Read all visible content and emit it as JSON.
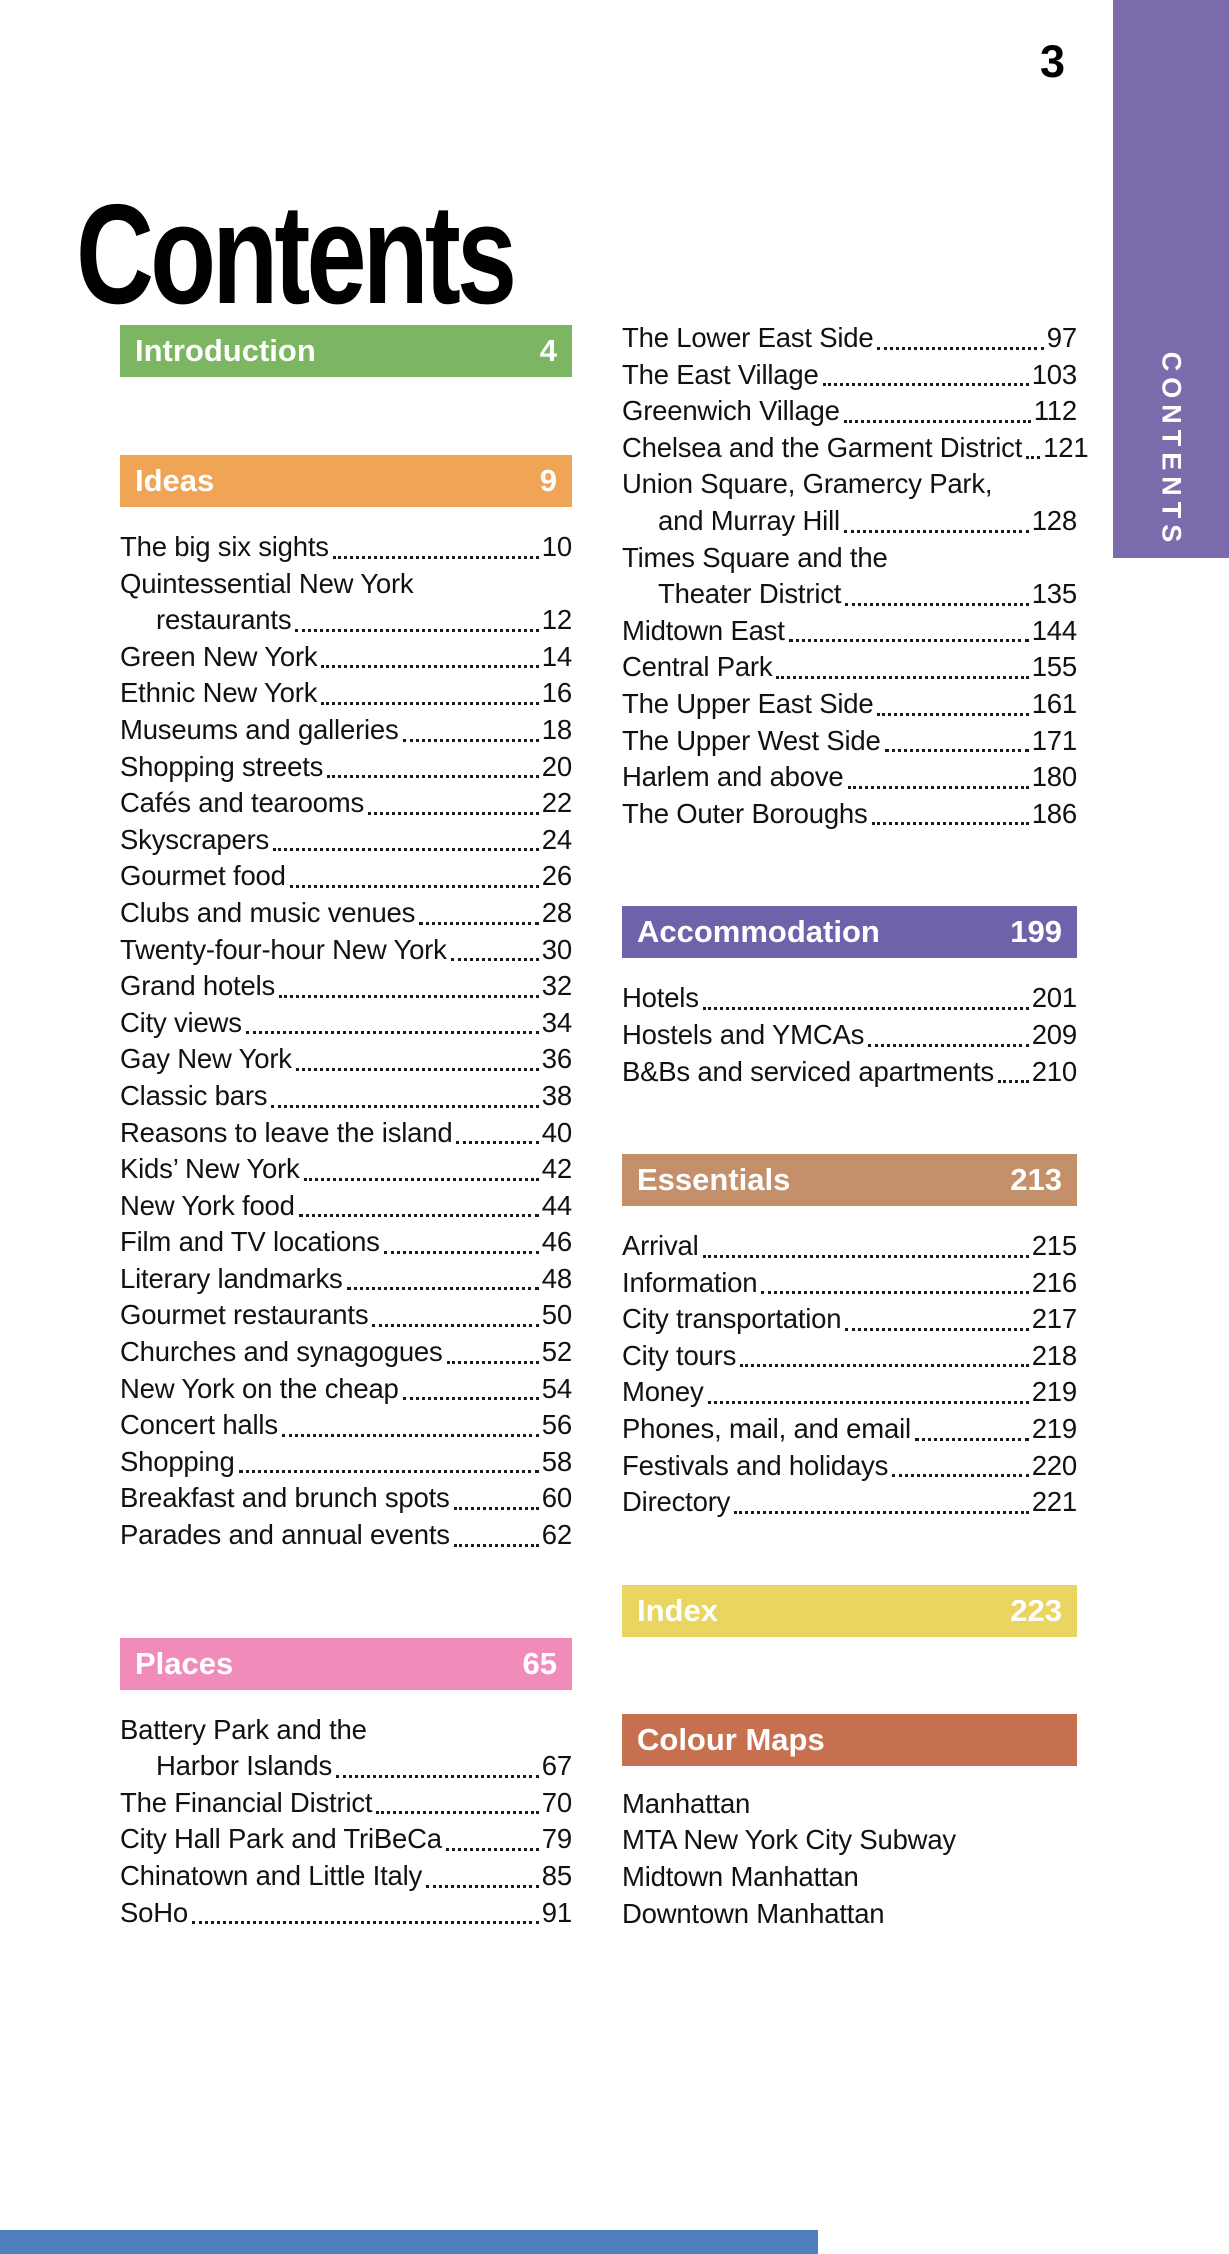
{
  "page_number": "3",
  "title": "Contents",
  "side_tab_label": "CONTENTS",
  "colors": {
    "side_tab": "#7C6CAE",
    "introduction": "#7DB662",
    "ideas": "#F0A455",
    "places": "#F18CBA",
    "accommodation": "#7061AB",
    "essentials": "#C3906B",
    "index": "#E9D55F",
    "colour_maps": "#C7704F",
    "footer_bar": "#4D7EBE"
  },
  "sections": {
    "introduction": {
      "label": "Introduction",
      "page": "4"
    },
    "ideas": {
      "label": "Ideas",
      "page": "9",
      "items": [
        {
          "label": "The big six sights",
          "page": "10"
        },
        {
          "pre": "Quintessential New York",
          "label": "restaurants",
          "page": "12"
        },
        {
          "label": "Green New York",
          "page": "14"
        },
        {
          "label": "Ethnic New York",
          "page": "16"
        },
        {
          "label": "Museums and galleries",
          "page": "18"
        },
        {
          "label": "Shopping streets",
          "page": "20"
        },
        {
          "label": "Cafés and tearooms",
          "page": "22"
        },
        {
          "label": "Skyscrapers",
          "page": "24"
        },
        {
          "label": "Gourmet food",
          "page": "26"
        },
        {
          "label": "Clubs and music venues",
          "page": "28"
        },
        {
          "label": "Twenty-four-hour New York",
          "page": "30"
        },
        {
          "label": "Grand hotels",
          "page": "32"
        },
        {
          "label": "City views",
          "page": "34"
        },
        {
          "label": "Gay New York",
          "page": "36"
        },
        {
          "label": "Classic bars",
          "page": "38"
        },
        {
          "label": "Reasons to leave the island",
          "page": "40"
        },
        {
          "label": "Kids’ New York",
          "page": "42"
        },
        {
          "label": "New York food",
          "page": "44"
        },
        {
          "label": "Film and TV locations",
          "page": "46"
        },
        {
          "label": "Literary landmarks",
          "page": "48"
        },
        {
          "label": "Gourmet restaurants",
          "page": "50"
        },
        {
          "label": "Churches and synagogues",
          "page": "52"
        },
        {
          "label": "New York on the cheap",
          "page": "54"
        },
        {
          "label": "Concert halls",
          "page": "56"
        },
        {
          "label": "Shopping",
          "page": "58"
        },
        {
          "label": "Breakfast and brunch spots",
          "page": "60"
        },
        {
          "label": "Parades and annual events",
          "page": "62"
        }
      ]
    },
    "places": {
      "label": "Places",
      "page": "65",
      "column1_items": [
        {
          "pre": "Battery Park and the",
          "label": "Harbor Islands",
          "page": "67"
        },
        {
          "label": "The Financial District",
          "page": "70"
        },
        {
          "label": "City Hall Park and TriBeCa",
          "page": "79"
        },
        {
          "label": "Chinatown and Little Italy",
          "page": "85"
        },
        {
          "label": "SoHo",
          "page": "91"
        }
      ],
      "column2_items": [
        {
          "label": "The Lower East Side",
          "page": "97"
        },
        {
          "label": "The East Village",
          "page": "103"
        },
        {
          "label": "Greenwich Village",
          "page": "112"
        },
        {
          "label": "Chelsea and the Garment District",
          "page": "121"
        },
        {
          "pre": "Union Square, Gramercy Park,",
          "label": "and Murray Hill",
          "page": "128"
        },
        {
          "pre": "Times Square and the",
          "label": "Theater District",
          "page": "135"
        },
        {
          "label": "Midtown East",
          "page": "144"
        },
        {
          "label": "Central Park",
          "page": "155"
        },
        {
          "label": "The Upper East Side",
          "page": "161"
        },
        {
          "label": "The Upper West Side",
          "page": "171"
        },
        {
          "label": "Harlem and above",
          "page": "180"
        },
        {
          "label": "The Outer Boroughs",
          "page": "186"
        }
      ]
    },
    "accommodation": {
      "label": "Accommodation",
      "page": "199",
      "items": [
        {
          "label": "Hotels",
          "page": "201"
        },
        {
          "label": "Hostels and YMCAs",
          "page": "209"
        },
        {
          "label": "B&Bs and serviced apartments",
          "page": "210"
        }
      ]
    },
    "essentials": {
      "label": "Essentials",
      "page": "213",
      "items": [
        {
          "label": "Arrival",
          "page": "215"
        },
        {
          "label": "Information",
          "page": "216"
        },
        {
          "label": "City transportation",
          "page": "217"
        },
        {
          "label": "City tours",
          "page": "218"
        },
        {
          "label": "Money",
          "page": "219"
        },
        {
          "label": "Phones, mail, and email",
          "page": "219"
        },
        {
          "label": "Festivals and holidays",
          "page": "220"
        },
        {
          "label": "Directory",
          "page": "221"
        }
      ]
    },
    "index": {
      "label": "Index",
      "page": "223"
    },
    "colour_maps": {
      "label": "Colour Maps",
      "items": [
        "Manhattan",
        "MTA New York City Subway",
        "Midtown Manhattan",
        "Downtown Manhattan"
      ]
    }
  }
}
